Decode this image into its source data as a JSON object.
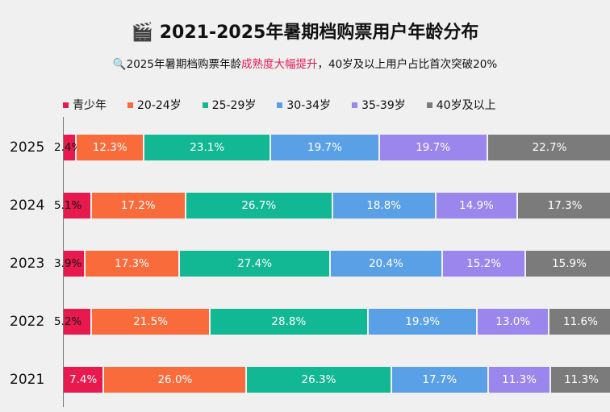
{
  "chart_data": {
    "type": "bar",
    "orientation": "horizontal",
    "stacked": true,
    "title_icon": "clapperboard-icon",
    "title": "2021-2025年暑期档购票用户年龄分布",
    "subtitle_icon": "magnifier-icon",
    "subtitle_pre": "2025年暑期档购票年龄",
    "subtitle_highlight": "成熟度大幅提升",
    "subtitle_post": "，40岁及以上用户占比首次突破20%",
    "categories": [
      "2025",
      "2024",
      "2023",
      "2022",
      "2021"
    ],
    "series": [
      {
        "name": "青少年",
        "color": "#e8194f",
        "values": [
          2.4,
          5.1,
          3.9,
          5.2,
          7.4
        ]
      },
      {
        "name": "20-24岁",
        "color": "#fa6b3c",
        "values": [
          12.3,
          17.2,
          17.3,
          21.5,
          26.0
        ]
      },
      {
        "name": "25-29岁",
        "color": "#12b894",
        "values": [
          23.1,
          26.7,
          27.4,
          28.8,
          26.3
        ]
      },
      {
        "name": "30-34岁",
        "color": "#5aa0e6",
        "values": [
          19.7,
          18.8,
          20.4,
          19.9,
          17.7
        ]
      },
      {
        "name": "35-39岁",
        "color": "#9a86ec",
        "values": [
          19.7,
          14.9,
          15.2,
          13.0,
          11.3
        ]
      },
      {
        "name": "40岁及以上",
        "color": "#7b7b7b",
        "values": [
          22.7,
          17.3,
          15.9,
          11.6,
          11.3
        ]
      }
    ],
    "value_suffix": "%",
    "xlim": [
      0,
      100
    ],
    "legend_position": "top-left",
    "grid": false
  }
}
